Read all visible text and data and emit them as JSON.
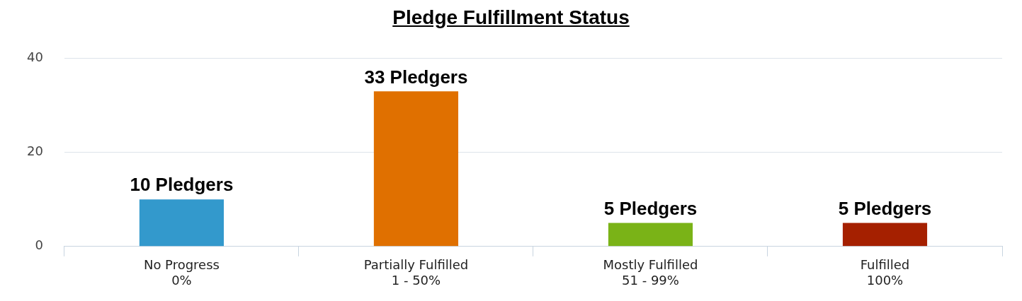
{
  "chart_data": {
    "type": "bar",
    "title": "Pledge Fulfillment Status",
    "categories": [
      "No Progress\n0%",
      "Partially Fulfilled\n1 - 50%",
      "Mostly Fulfilled\n51 - 99%",
      "Fulfilled\n100%"
    ],
    "values": [
      10,
      33,
      5,
      5
    ],
    "colors": [
      "#3399cc",
      "#e07000",
      "#7ab317",
      "#a52000"
    ],
    "value_labels": [
      "10 Pledgers",
      "33 Pledgers",
      "5 Pledgers",
      "5 Pledgers"
    ],
    "ylim": [
      0,
      40
    ],
    "yticks": [
      0,
      20,
      40
    ],
    "grid": "y",
    "legend": false
  }
}
